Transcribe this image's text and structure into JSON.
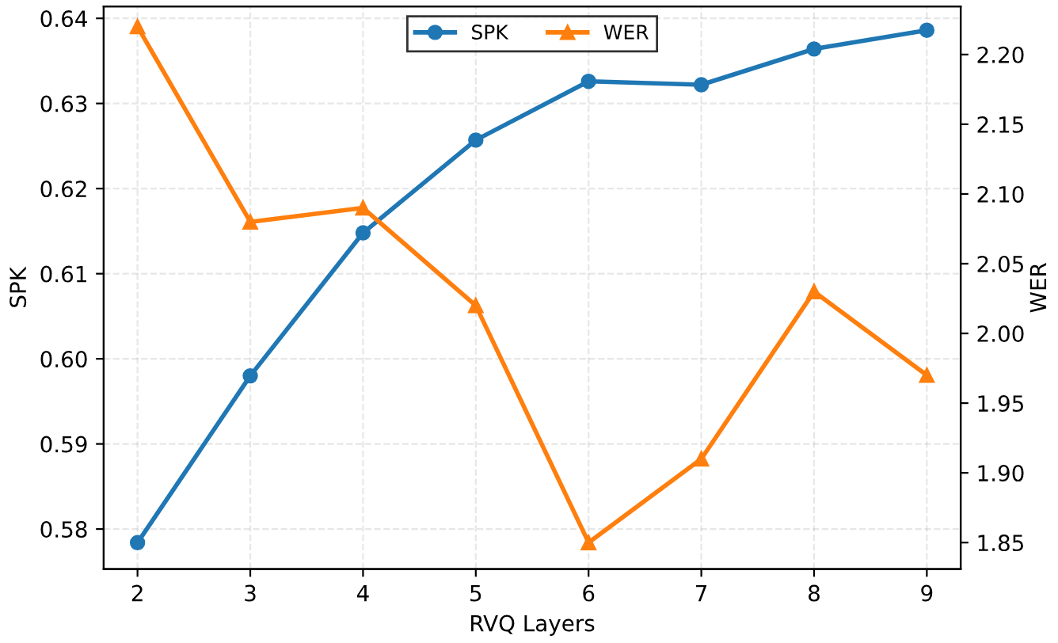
{
  "chart_data": {
    "type": "line",
    "xlabel": "RVQ Layers",
    "ylabel": "SPK",
    "y2label": "WER",
    "x": [
      2,
      3,
      4,
      5,
      6,
      7,
      8,
      9
    ],
    "series": [
      {
        "name": "SPK",
        "color": "#1f77b4",
        "marker": "circle",
        "values": [
          0.5784,
          0.598,
          0.6148,
          0.6257,
          0.6326,
          0.6322,
          0.6364,
          0.6386
        ]
      },
      {
        "name": "WER",
        "color": "#ff7f0e",
        "marker": "triangle",
        "axis": "y2",
        "values": [
          2.22,
          2.08,
          2.09,
          2.02,
          1.85,
          1.91,
          2.03,
          1.97
        ]
      }
    ],
    "xlim": [
      1.7,
      9.3
    ],
    "xticks": [
      2,
      3,
      4,
      5,
      6,
      7,
      8,
      9
    ],
    "ylim": [
      0.5753,
      0.6414
    ],
    "y2lim": [
      1.831,
      2.2345
    ],
    "y2ticks": [
      1.85,
      {
        "value": 1.9,
        "label": "1.90"
      },
      1.95,
      {
        "value": 2.0,
        "label": "2.00"
      },
      2.05,
      {
        "value": 2.1,
        "label": "2.10"
      },
      2.15,
      {
        "value": 2.2,
        "label": "2.20"
      }
    ],
    "yticks": [
      0.58,
      0.59,
      {
        "value": 0.6,
        "label": "0.60"
      },
      0.61,
      0.62,
      0.63,
      0.64
    ],
    "grid": true,
    "legend": "top",
    "line_style": "solid"
  }
}
